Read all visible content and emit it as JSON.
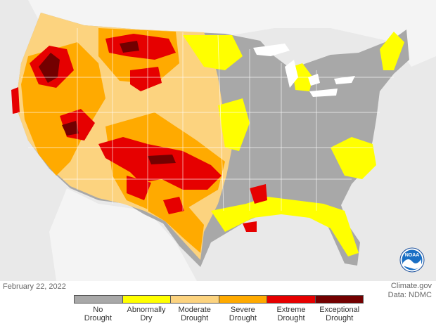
{
  "map": {
    "date": "February 22, 2022",
    "credit_site": "Climate.gov",
    "credit_data": "Data: NDMC",
    "logo_text": "NOAA",
    "colors": {
      "background": "#e9e9e9",
      "land_outside": "#f4f4f4",
      "water": "#ffffff",
      "state_borders": "#ffffff"
    }
  },
  "legend": {
    "categories": [
      {
        "line1": "No",
        "line2": "Drought",
        "color": "#a8a8a8"
      },
      {
        "line1": "Abnormally",
        "line2": "Dry",
        "color": "#ffff00"
      },
      {
        "line1": "Moderate",
        "line2": "Drought",
        "color": "#fcd37f"
      },
      {
        "line1": "Severe",
        "line2": "Drought",
        "color": "#ffaa00"
      },
      {
        "line1": "Extreme",
        "line2": "Drought",
        "color": "#e60000"
      },
      {
        "line1": "Exceptional",
        "line2": "Drought",
        "color": "#730000"
      }
    ]
  }
}
